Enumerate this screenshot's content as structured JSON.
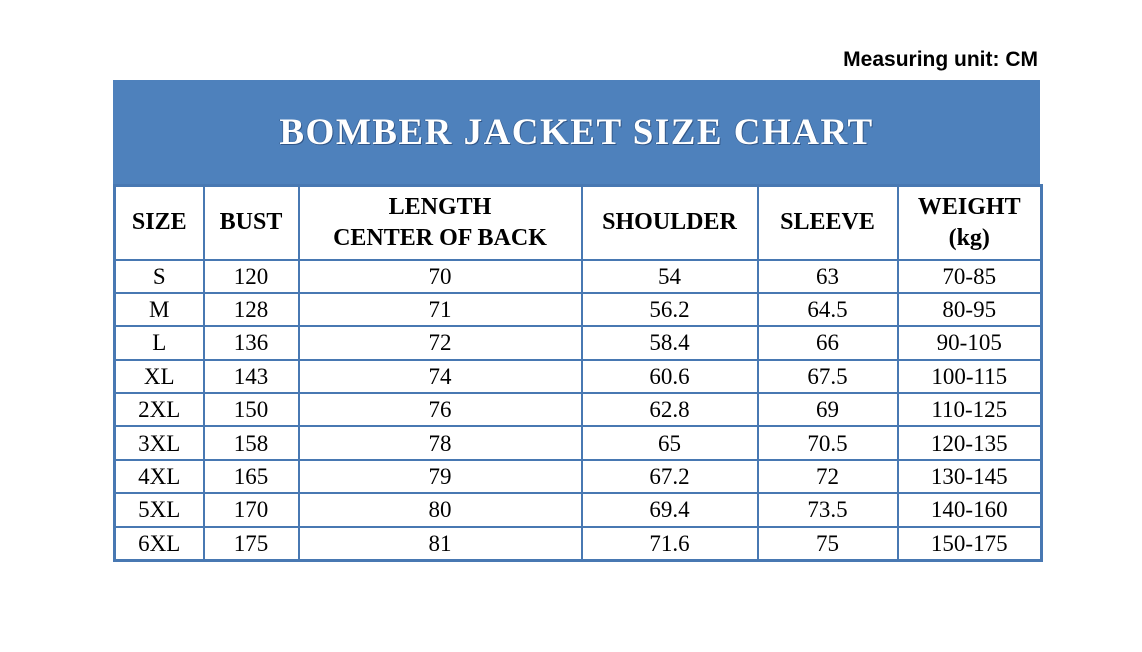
{
  "note": "Measuring unit: CM",
  "colors": {
    "band": "#4e81bc",
    "border": "#4878b2",
    "title_text": "#ffffff",
    "body_text": "#000000"
  },
  "table": {
    "title": "BOMBER JACKET SIZE CHART",
    "headers": [
      "SIZE",
      "BUST",
      "LENGTH\nCENTER OF BACK",
      "SHOULDER",
      "SLEEVE",
      "WEIGHT\n(kg)"
    ],
    "rows": [
      [
        "S",
        "120",
        "70",
        "54",
        "63",
        "70-85"
      ],
      [
        "M",
        "128",
        "71",
        "56.2",
        "64.5",
        "80-95"
      ],
      [
        "L",
        "136",
        "72",
        "58.4",
        "66",
        "90-105"
      ],
      [
        "XL",
        "143",
        "74",
        "60.6",
        "67.5",
        "100-115"
      ],
      [
        "2XL",
        "150",
        "76",
        "62.8",
        "69",
        "110-125"
      ],
      [
        "3XL",
        "158",
        "78",
        "65",
        "70.5",
        "120-135"
      ],
      [
        "4XL",
        "165",
        "79",
        "67.2",
        "72",
        "130-145"
      ],
      [
        "5XL",
        "170",
        "80",
        "69.4",
        "73.5",
        "140-160"
      ],
      [
        "6XL",
        "175",
        "81",
        "71.6",
        "75",
        "150-175"
      ]
    ]
  },
  "chart_data": {
    "type": "table",
    "title": "BOMBER JACKET SIZE CHART",
    "unit": "CM",
    "columns": [
      "SIZE",
      "BUST",
      "LENGTH CENTER OF BACK",
      "SHOULDER",
      "SLEEVE",
      "WEIGHT (kg)"
    ],
    "rows": [
      {
        "size": "S",
        "bust": 120,
        "length_center_of_back": 70,
        "shoulder": 54,
        "sleeve": 63,
        "weight_kg": "70-85"
      },
      {
        "size": "M",
        "bust": 128,
        "length_center_of_back": 71,
        "shoulder": 56.2,
        "sleeve": 64.5,
        "weight_kg": "80-95"
      },
      {
        "size": "L",
        "bust": 136,
        "length_center_of_back": 72,
        "shoulder": 58.4,
        "sleeve": 66,
        "weight_kg": "90-105"
      },
      {
        "size": "XL",
        "bust": 143,
        "length_center_of_back": 74,
        "shoulder": 60.6,
        "sleeve": 67.5,
        "weight_kg": "100-115"
      },
      {
        "size": "2XL",
        "bust": 150,
        "length_center_of_back": 76,
        "shoulder": 62.8,
        "sleeve": 69,
        "weight_kg": "110-125"
      },
      {
        "size": "3XL",
        "bust": 158,
        "length_center_of_back": 78,
        "shoulder": 65,
        "sleeve": 70.5,
        "weight_kg": "120-135"
      },
      {
        "size": "4XL",
        "bust": 165,
        "length_center_of_back": 79,
        "shoulder": 67.2,
        "sleeve": 72,
        "weight_kg": "130-145"
      },
      {
        "size": "5XL",
        "bust": 170,
        "length_center_of_back": 80,
        "shoulder": 69.4,
        "sleeve": 73.5,
        "weight_kg": "140-160"
      },
      {
        "size": "6XL",
        "bust": 175,
        "length_center_of_back": 81,
        "shoulder": 71.6,
        "sleeve": 75,
        "weight_kg": "150-175"
      }
    ]
  }
}
